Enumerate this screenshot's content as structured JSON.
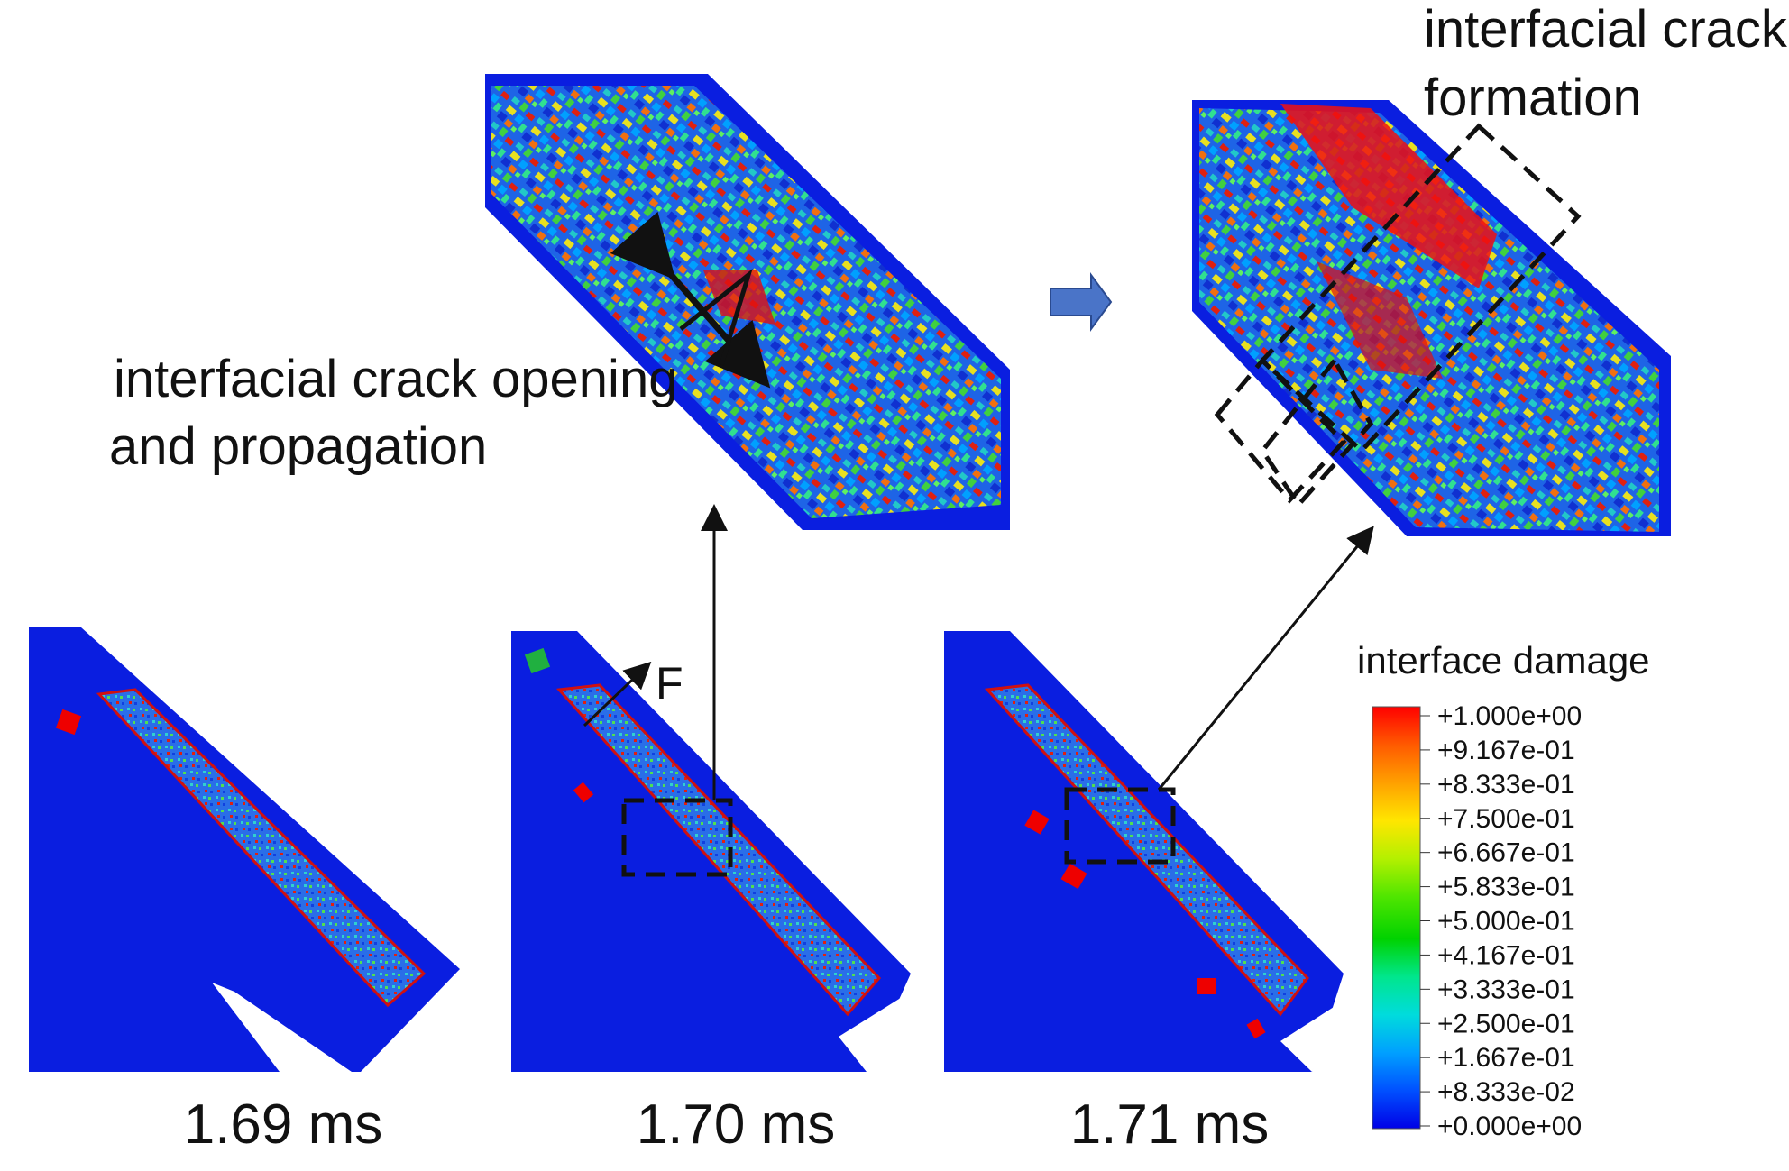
{
  "annotations": {
    "opening": [
      "interfacial crack opening",
      "and propagation"
    ],
    "formation": [
      "interfacial crack",
      "formation"
    ],
    "force": "F"
  },
  "panels": [
    {
      "time": "1.69 ms"
    },
    {
      "time": "1.70 ms"
    },
    {
      "time": "1.71 ms"
    }
  ],
  "colorbar": {
    "title": "interface damage",
    "labels": [
      "+1.000e+00",
      "+9.167e-01",
      "+8.333e-01",
      "+7.500e-01",
      "+6.667e-01",
      "+5.833e-01",
      "+5.000e-01",
      "+4.167e-01",
      "+3.333e-01",
      "+2.500e-01",
      "+1.667e-01",
      "+8.333e-02",
      "+0.000e+00"
    ]
  }
}
